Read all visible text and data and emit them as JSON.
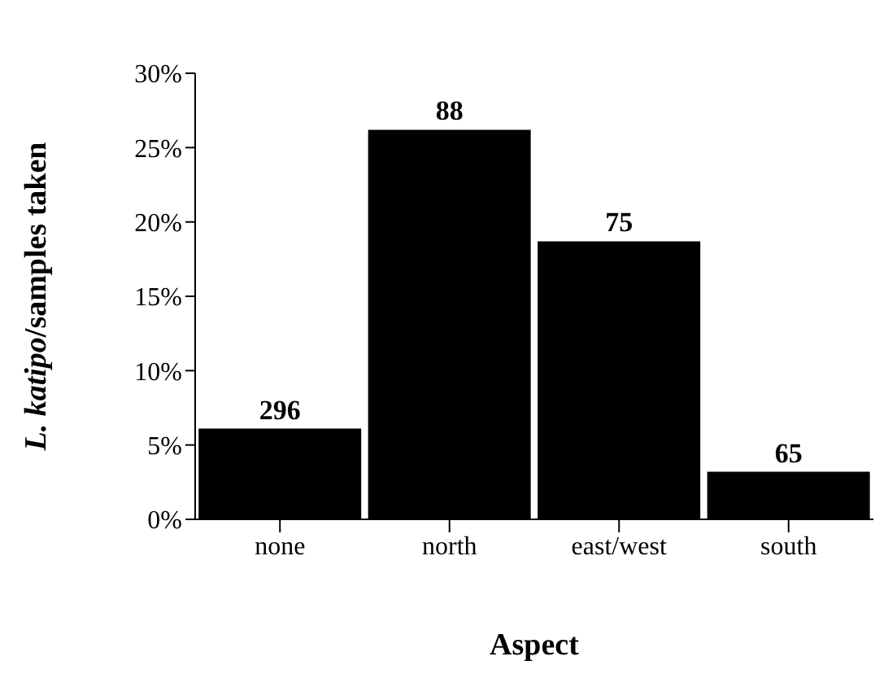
{
  "chart_data": {
    "type": "bar",
    "xlabel": "Aspect",
    "ylabel": "L. katipo/samples taken",
    "categories": [
      "none",
      "north",
      "east/west",
      "south"
    ],
    "values": [
      6.1,
      26.2,
      18.7,
      3.2
    ],
    "annotations": [
      {
        "text": "296",
        "x": "none",
        "y": 6.1
      },
      {
        "text": "88",
        "x": "north",
        "y": 26.2
      },
      {
        "text": "75",
        "x": "east/west",
        "y": 18.7
      },
      {
        "text": "65",
        "x": "south",
        "y": 3.2
      }
    ],
    "color": "#000000",
    "ylim": [
      0,
      30
    ],
    "yticks": [
      {
        "value": 0,
        "label": "0%"
      },
      {
        "value": 5,
        "label": "5%"
      },
      {
        "value": 10,
        "label": "10%"
      },
      {
        "value": 15,
        "label": "15%"
      },
      {
        "value": 20,
        "label": "20%"
      },
      {
        "value": 25,
        "label": "25%"
      },
      {
        "value": 30,
        "label": "30%"
      }
    ],
    "grid": false,
    "legend": false
  }
}
